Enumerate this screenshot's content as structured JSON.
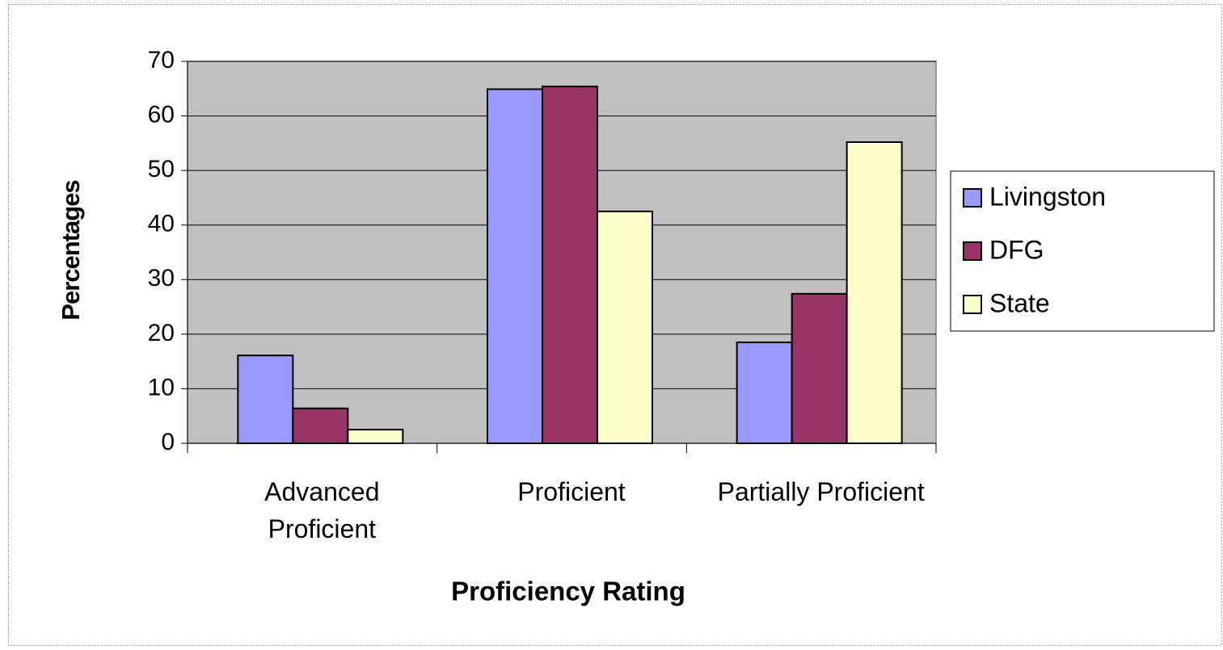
{
  "chart_data": {
    "type": "bar",
    "x_label": "Proficiency Rating",
    "y_label": "Percentages",
    "categories": [
      "Advanced Proficient",
      "Proficient",
      "Partially Proficient"
    ],
    "series": [
      {
        "name": "Livingston",
        "color": "#9999ff",
        "values": [
          16.1,
          64.9,
          18.5
        ]
      },
      {
        "name": "DFG",
        "color": "#993366",
        "values": [
          6.4,
          65.4,
          27.4
        ]
      },
      {
        "name": "State",
        "color": "#ffffcc",
        "values": [
          2.5,
          42.5,
          55.2
        ]
      }
    ],
    "ylim": [
      0,
      70
    ],
    "yticks": [
      0,
      10,
      20,
      30,
      40,
      50,
      60,
      70
    ],
    "grid": true,
    "plot_background": "#c0c0c0",
    "legend": "right"
  }
}
